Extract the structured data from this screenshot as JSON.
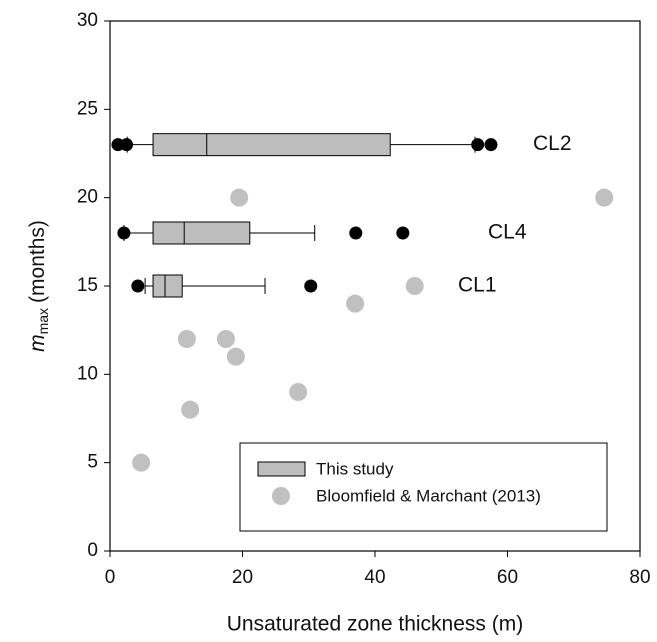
{
  "chart_data": {
    "type": "boxplot-scatter",
    "xlabel": "Unsaturated zone thickness (m)",
    "ylabel": {
      "symbol": "m",
      "subscript": "max",
      "unit": "(months)"
    },
    "xlim": [
      0,
      80
    ],
    "xticks": [
      0,
      20,
      40,
      60,
      80
    ],
    "ylim": [
      0,
      30
    ],
    "yticks": [
      0,
      5,
      10,
      15,
      20,
      25,
      30
    ],
    "legend": "lower right",
    "boxes": {
      "name": "This study",
      "color": "#bdbdbd",
      "outlier_color": "#000000",
      "groups": [
        {
          "label": "CL2",
          "y": 23,
          "whisker_low": 2.6,
          "q1": 6.5,
          "median": 14.6,
          "q3": 42.3,
          "whisker_high": 55.1,
          "outliers": [
            1.2,
            2.5,
            55.5,
            57.5
          ]
        },
        {
          "label": "CL4",
          "y": 18,
          "whisker_low": 2.1,
          "q1": 6.5,
          "median": 11.2,
          "q3": 21.1,
          "whisker_high": 30.9,
          "outliers": [
            2.1,
            37.1,
            44.2
          ]
        },
        {
          "label": "CL1",
          "y": 15,
          "whisker_low": 5.3,
          "q1": 6.5,
          "median": 8.3,
          "q3": 10.9,
          "whisker_high": 23.4,
          "outliers": [
            4.2,
            30.3
          ]
        }
      ]
    },
    "scatter": {
      "name": "Bloomfield & Marchant (2013)",
      "color": "#c0c0c0",
      "x": [
        4.7,
        12.1,
        11.6,
        17.5,
        19.0,
        28.4,
        37.0,
        46.0,
        19.5,
        74.6
      ],
      "y": [
        5,
        8,
        12,
        12,
        11,
        9,
        14,
        15,
        20,
        20
      ]
    }
  }
}
